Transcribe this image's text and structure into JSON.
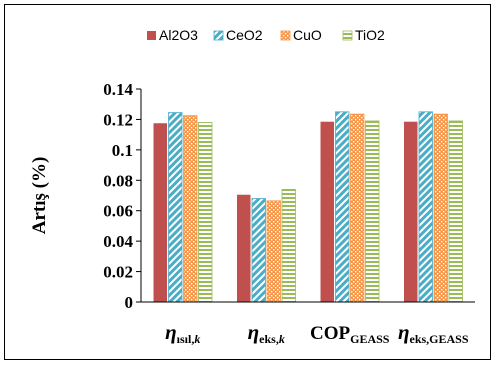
{
  "chart_data": {
    "type": "bar",
    "ylabel": "Artış (%)",
    "ylim": [
      0,
      0.14
    ],
    "yticks": [
      "0",
      "0.02",
      "0.04",
      "0.06",
      "0.08",
      "0.1",
      "0.12",
      "0.14"
    ],
    "grid": false,
    "legend_position": "top",
    "categories": [
      {
        "main": "η",
        "sub": "ısıl,k",
        "sub_italic_tail": "k"
      },
      {
        "main": "η",
        "sub": "eks,k",
        "sub_italic_tail": "k"
      },
      {
        "main": "COP",
        "sub": "GEASS",
        "sub_italic_tail": ""
      },
      {
        "main": "η",
        "sub": "eks,GEASS",
        "sub_italic_tail": ""
      }
    ],
    "series": [
      {
        "name": "Al2O3",
        "color": "#c0504d",
        "pattern": "solid",
        "values": [
          0.1175,
          0.0705,
          0.1185,
          0.1185
        ]
      },
      {
        "name": "CeO2",
        "color": "#4bacc6",
        "pattern": "diagonal",
        "values": [
          0.1245,
          0.068,
          0.125,
          0.125
        ]
      },
      {
        "name": "CuO",
        "color": "#f79646",
        "pattern": "dots",
        "values": [
          0.1225,
          0.0665,
          0.1235,
          0.1235
        ]
      },
      {
        "name": "TiO2",
        "color": "#9bbb59",
        "pattern": "horizontal",
        "values": [
          0.118,
          0.074,
          0.119,
          0.119
        ]
      }
    ]
  }
}
